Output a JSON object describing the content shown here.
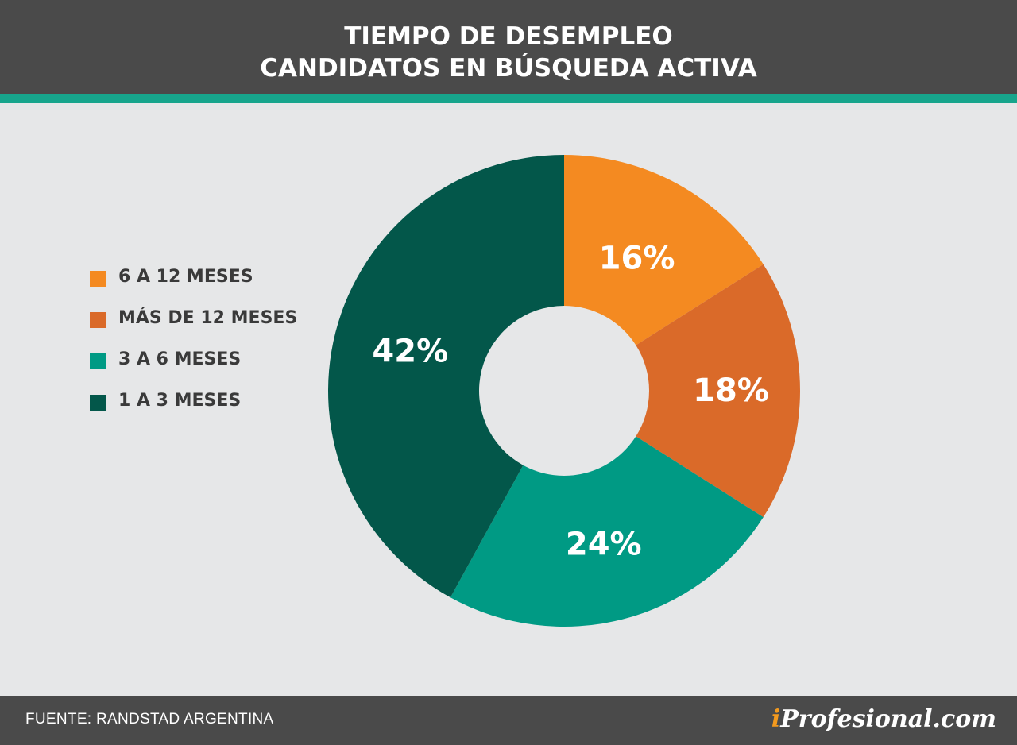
{
  "header": {
    "title_line1": "TIEMPO DE DESEMPLEO",
    "title_line2": "CANDIDATOS EN BÚSQUEDA ACTIVA"
  },
  "chart_data": {
    "type": "pie",
    "title": "TIEMPO DE DESEMPLEO CANDIDATOS EN BÚSQUEDA ACTIVA",
    "categories": [
      "6 A 12 MESES",
      "MÁS DE 12 MESES",
      "3 A 6 MESES",
      "1 A 3 MESES"
    ],
    "values": [
      16,
      18,
      24,
      42
    ],
    "labels": [
      "16%",
      "18%",
      "24%",
      "42%"
    ],
    "colors": [
      "#f48a21",
      "#da6a29",
      "#009a84",
      "#03574a"
    ],
    "donut": true,
    "legend_placement": "left"
  },
  "legend": {
    "items": [
      {
        "label": "6 A 12 MESES",
        "color": "#f48a21"
      },
      {
        "label": "MÁS DE 12 MESES",
        "color": "#da6a29"
      },
      {
        "label": "3 A 6 MESES",
        "color": "#009a84"
      },
      {
        "label": "1 A 3 MESES",
        "color": "#03574a"
      }
    ]
  },
  "footer": {
    "source": "FUENTE: RANDSTAD ARGENTINA",
    "brand_prefix": "i",
    "brand_rest": "Profesional.com"
  },
  "colors": {
    "header_bg": "#4a4a4a",
    "accent": "#17a58c",
    "background": "#e6e7e8",
    "brand_accent": "#f39a1e"
  }
}
